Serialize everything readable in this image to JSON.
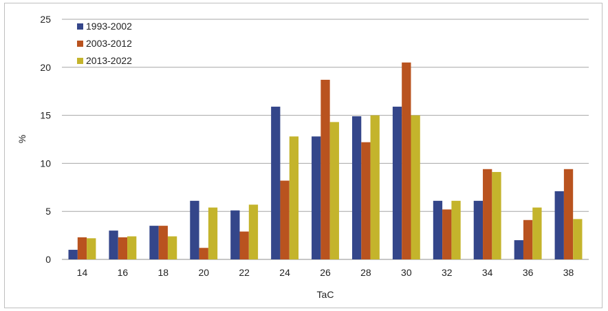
{
  "chart_data": {
    "type": "bar",
    "xlabel": "TaC",
    "ylabel": "%",
    "ylim": [
      0,
      25
    ],
    "yticks": [
      0,
      5,
      10,
      15,
      20,
      25
    ],
    "grid": true,
    "legend_position": "top-left",
    "categories": [
      "14",
      "16",
      "18",
      "20",
      "22",
      "24",
      "26",
      "28",
      "30",
      "32",
      "34",
      "36",
      "38"
    ],
    "series": [
      {
        "name": "1993-2002",
        "color": "#34468a",
        "values": [
          1.0,
          3.0,
          3.5,
          6.1,
          5.1,
          15.9,
          12.8,
          14.9,
          15.9,
          6.1,
          6.1,
          2.0,
          7.1
        ]
      },
      {
        "name": "2003-2012",
        "color": "#b9531f",
        "values": [
          2.3,
          2.3,
          3.5,
          1.2,
          2.9,
          8.2,
          18.7,
          12.2,
          20.5,
          5.2,
          9.4,
          4.1,
          9.4
        ]
      },
      {
        "name": "2013-2022",
        "color": "#c4b42c",
        "values": [
          2.2,
          2.4,
          2.4,
          5.4,
          5.7,
          12.8,
          14.3,
          15.0,
          15.0,
          6.1,
          9.1,
          5.4,
          4.2
        ]
      }
    ]
  }
}
